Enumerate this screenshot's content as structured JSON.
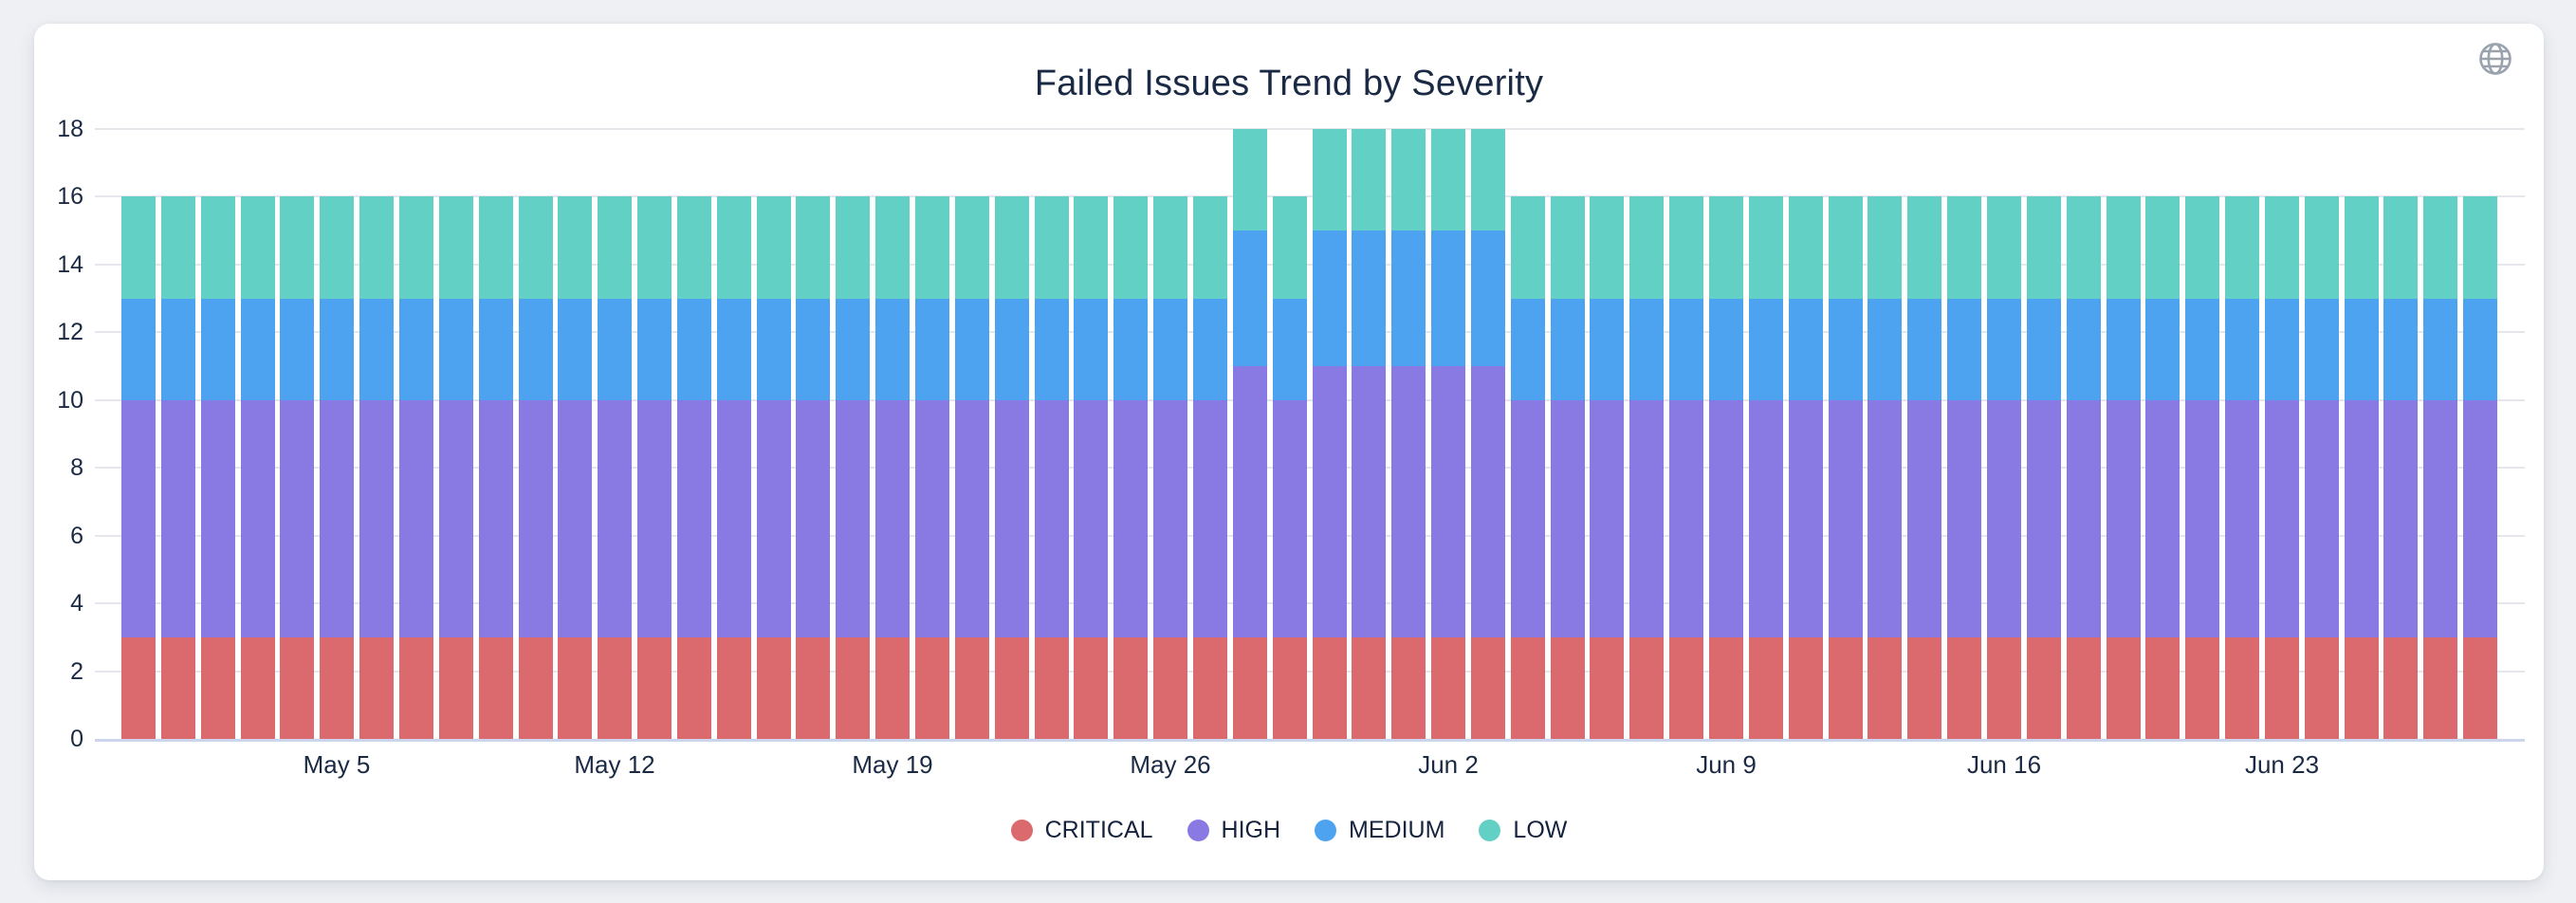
{
  "page": {
    "background_color": "#eef0f4",
    "card_color": "#ffffff"
  },
  "header": {
    "action_icon": "globe-icon",
    "action_icon_color": "#99a2ad"
  },
  "text_colors": {
    "title": "#1b2a44",
    "axis_label": "#1b2a44",
    "legend_label": "#16233e"
  },
  "grid_colors": {
    "gridline": "#e5e7ec",
    "baseline": "#ccd5ec"
  },
  "chart_data": {
    "type": "bar",
    "stacked": true,
    "title": "Failed Issues Trend by Severity",
    "xlabel": "",
    "ylabel": "",
    "ylim": [
      0,
      18
    ],
    "y_ticks": [
      0,
      2,
      4,
      6,
      8,
      10,
      12,
      14,
      16,
      18
    ],
    "grid": true,
    "legend_position": "bottom",
    "x": [
      "Apr 30",
      "May 1",
      "May 2",
      "May 3",
      "May 4",
      "May 5",
      "May 6",
      "May 7",
      "May 8",
      "May 9",
      "May 10",
      "May 11",
      "May 12",
      "May 13",
      "May 14",
      "May 15",
      "May 16",
      "May 17",
      "May 18",
      "May 19",
      "May 20",
      "May 21",
      "May 22",
      "May 23",
      "May 24",
      "May 25",
      "May 26",
      "May 27",
      "May 28",
      "May 29",
      "May 30",
      "May 31",
      "Jun 1",
      "Jun 2",
      "Jun 3",
      "Jun 4",
      "Jun 5",
      "Jun 6",
      "Jun 7",
      "Jun 8",
      "Jun 9",
      "Jun 10",
      "Jun 11",
      "Jun 12",
      "Jun 13",
      "Jun 14",
      "Jun 15",
      "Jun 16",
      "Jun 17",
      "Jun 18",
      "Jun 19",
      "Jun 20",
      "Jun 21",
      "Jun 22",
      "Jun 23",
      "Jun 24",
      "Jun 25",
      "Jun 26",
      "Jun 27",
      "Jun 28"
    ],
    "x_ticks": [
      {
        "index": 5,
        "label": "May 5"
      },
      {
        "index": 12,
        "label": "May 12"
      },
      {
        "index": 19,
        "label": "May 19"
      },
      {
        "index": 26,
        "label": "May 26"
      },
      {
        "index": 33,
        "label": "Jun 2"
      },
      {
        "index": 40,
        "label": "Jun 9"
      },
      {
        "index": 47,
        "label": "Jun 16"
      },
      {
        "index": 54,
        "label": "Jun 23"
      }
    ],
    "series": [
      {
        "name": "CRITICAL",
        "color": "#da6a6e",
        "values": [
          3,
          3,
          3,
          3,
          3,
          3,
          3,
          3,
          3,
          3,
          3,
          3,
          3,
          3,
          3,
          3,
          3,
          3,
          3,
          3,
          3,
          3,
          3,
          3,
          3,
          3,
          3,
          3,
          3,
          3,
          3,
          3,
          3,
          3,
          3,
          3,
          3,
          3,
          3,
          3,
          3,
          3,
          3,
          3,
          3,
          3,
          3,
          3,
          3,
          3,
          3,
          3,
          3,
          3,
          3,
          3,
          3,
          3,
          3,
          3
        ]
      },
      {
        "name": "HIGH",
        "color": "#8979e3",
        "values": [
          7,
          7,
          7,
          7,
          7,
          7,
          7,
          7,
          7,
          7,
          7,
          7,
          7,
          7,
          7,
          7,
          7,
          7,
          7,
          7,
          7,
          7,
          7,
          7,
          7,
          7,
          7,
          7,
          8,
          7,
          8,
          8,
          8,
          8,
          8,
          7,
          7,
          7,
          7,
          7,
          7,
          7,
          7,
          7,
          7,
          7,
          7,
          7,
          7,
          7,
          7,
          7,
          7,
          7,
          7,
          7,
          7,
          7,
          7,
          7
        ]
      },
      {
        "name": "MEDIUM",
        "color": "#4ea3f0",
        "values": [
          3,
          3,
          3,
          3,
          3,
          3,
          3,
          3,
          3,
          3,
          3,
          3,
          3,
          3,
          3,
          3,
          3,
          3,
          3,
          3,
          3,
          3,
          3,
          3,
          3,
          3,
          3,
          3,
          4,
          3,
          4,
          4,
          4,
          4,
          4,
          3,
          3,
          3,
          3,
          3,
          3,
          3,
          3,
          3,
          3,
          3,
          3,
          3,
          3,
          3,
          3,
          3,
          3,
          3,
          3,
          3,
          3,
          3,
          3,
          3
        ]
      },
      {
        "name": "LOW",
        "color": "#62d0c5",
        "values": [
          3,
          3,
          3,
          3,
          3,
          3,
          3,
          3,
          3,
          3,
          3,
          3,
          3,
          3,
          3,
          3,
          3,
          3,
          3,
          3,
          3,
          3,
          3,
          3,
          3,
          3,
          3,
          3,
          3,
          3,
          3,
          3,
          3,
          3,
          3,
          3,
          3,
          3,
          3,
          3,
          3,
          3,
          3,
          3,
          3,
          3,
          3,
          3,
          3,
          3,
          3,
          3,
          3,
          3,
          3,
          3,
          3,
          3,
          3,
          3
        ]
      }
    ]
  }
}
